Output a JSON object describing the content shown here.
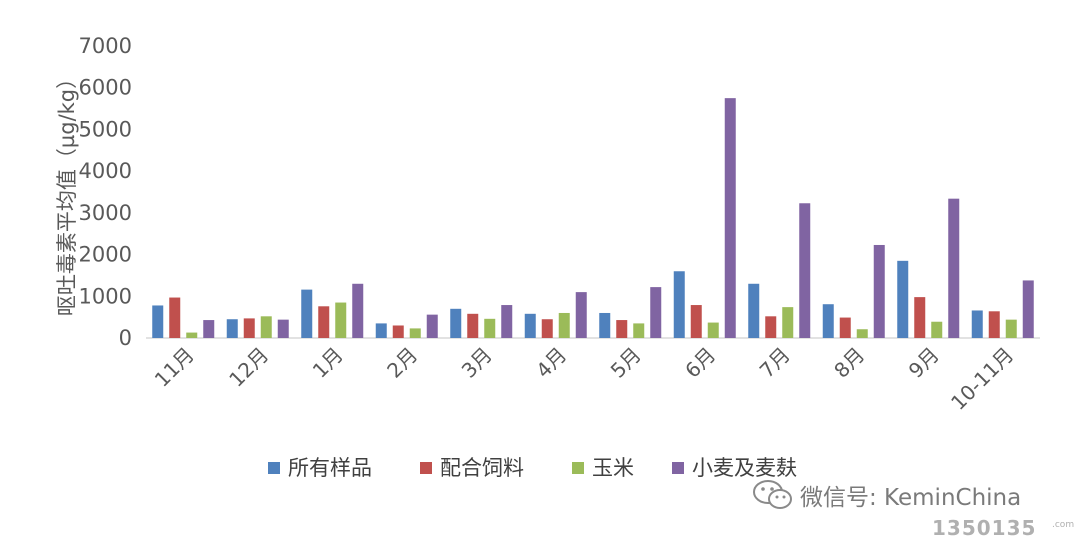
{
  "chart_data": {
    "type": "bar",
    "ylabel": "呕吐毒素平均值（µg/kg）",
    "ylim": [
      0,
      7000
    ],
    "yticks": [
      "0",
      "1000",
      "2000",
      "3000",
      "4000",
      "5000",
      "6000",
      "7000"
    ],
    "categories": [
      "11月",
      "12月",
      "1月",
      "2月",
      "3月",
      "4月",
      "5月",
      "6月",
      "7月",
      "8月",
      "9月",
      "10-11月"
    ],
    "series": [
      {
        "name": "所有样品",
        "color": "#4F81BD",
        "values": [
          780,
          450,
          1160,
          350,
          700,
          580,
          600,
          1600,
          1300,
          810,
          1850,
          660
        ]
      },
      {
        "name": "配合饲料",
        "color": "#C0504D",
        "values": [
          970,
          470,
          760,
          300,
          580,
          450,
          430,
          790,
          520,
          490,
          980,
          640
        ]
      },
      {
        "name": "玉米",
        "color": "#9BBB59",
        "values": [
          130,
          520,
          850,
          230,
          460,
          600,
          350,
          370,
          740,
          210,
          390,
          440
        ]
      },
      {
        "name": "小麦及麦麸",
        "color": "#8064A2",
        "values": [
          430,
          440,
          1300,
          560,
          790,
          1100,
          1220,
          5750,
          3230,
          2230,
          3340,
          1380
        ]
      }
    ],
    "grid": false,
    "legend_position": "bottom"
  },
  "watermark": {
    "text": "微信号: KeminChina",
    "number": "1350135",
    "suffix": ".com"
  }
}
